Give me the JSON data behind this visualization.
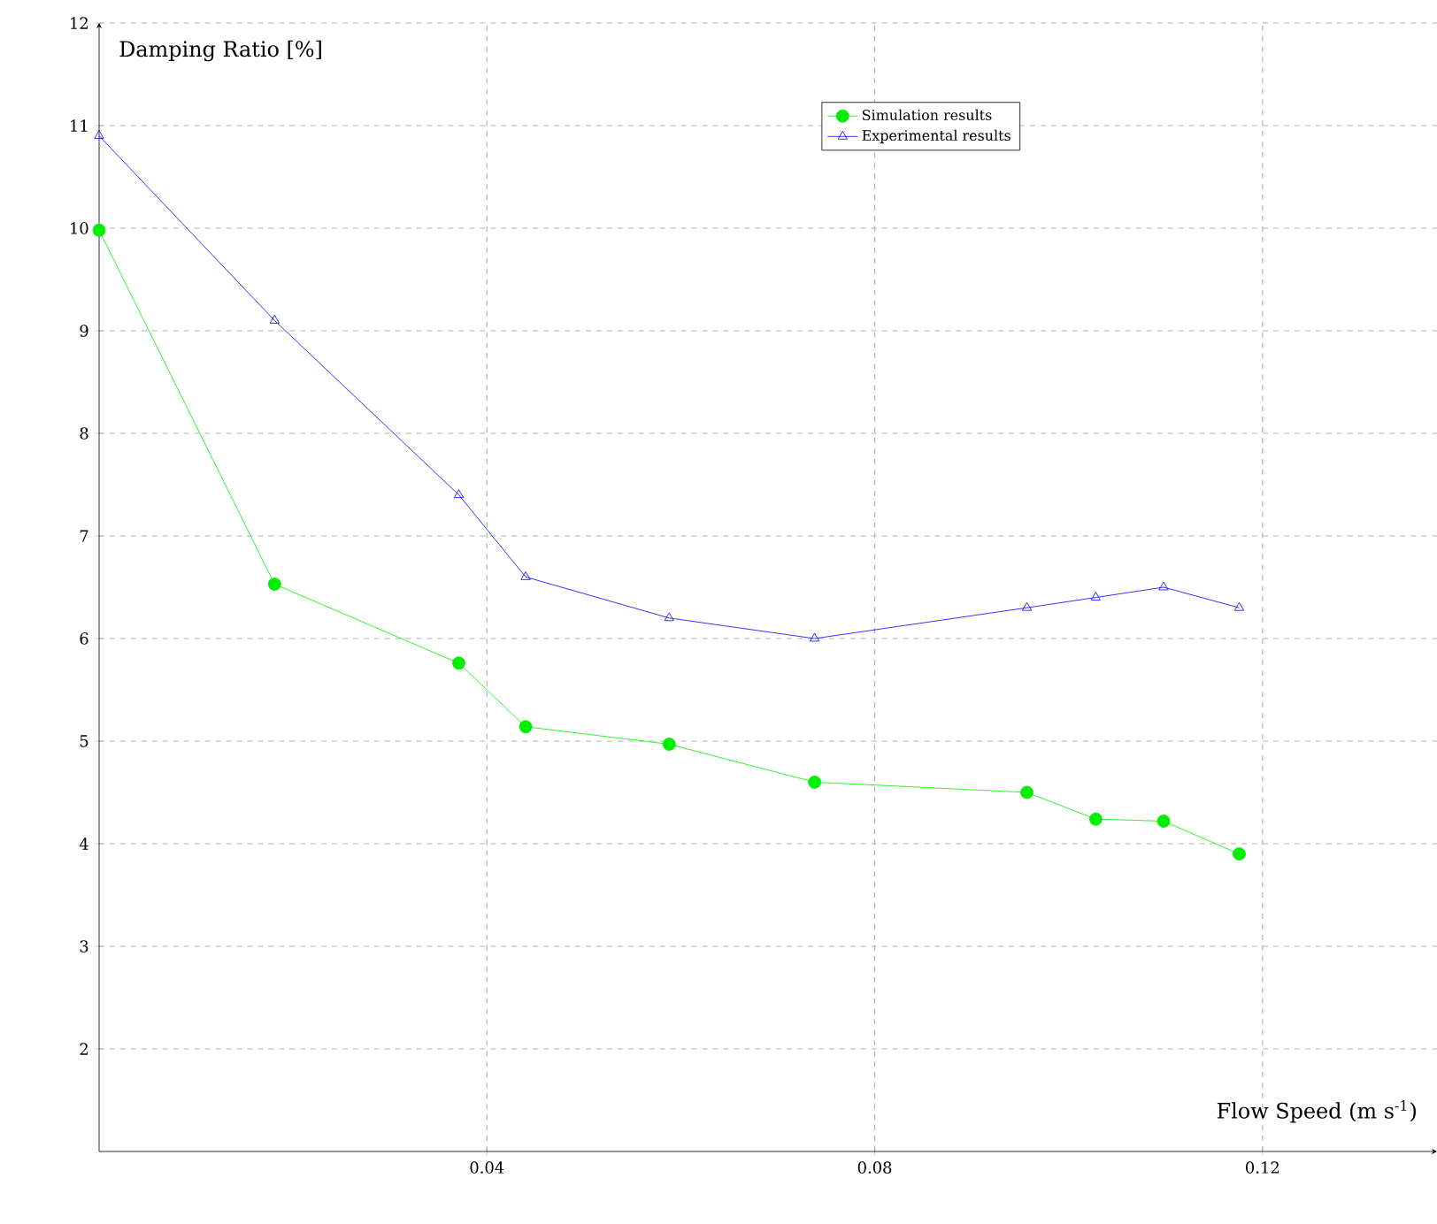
{
  "chart_data": {
    "type": "line",
    "xlabel": "Flow Speed (m s$^{-1}$)",
    "ylabel": "Damping Ratio [%]",
    "xlim": [
      0,
      0.138
    ],
    "ylim": [
      1,
      12
    ],
    "xticks": [
      0.04,
      0.08,
      0.12
    ],
    "yticks": [
      2,
      3,
      4,
      5,
      6,
      7,
      8,
      9,
      10,
      11,
      12
    ],
    "grid": true,
    "legend": "top right",
    "line_style": "solid",
    "series": [
      {
        "name": "Simulation results",
        "color": "#00ee00",
        "marker": "circle",
        "x": [
          0,
          0.0181,
          0.0371,
          0.044,
          0.0588,
          0.0738,
          0.0957,
          0.1028,
          0.1098,
          0.1176
        ],
        "values": [
          9.98,
          6.53,
          5.76,
          5.14,
          4.97,
          4.6,
          4.5,
          4.24,
          4.22,
          3.9
        ]
      },
      {
        "name": "Experimental results",
        "color": "#0000ff",
        "marker": "triangle",
        "x": [
          0,
          0.0181,
          0.0371,
          0.044,
          0.0588,
          0.0738,
          0.0957,
          0.1028,
          0.1098,
          0.1176
        ],
        "values": [
          10.9,
          9.1,
          7.4,
          6.6,
          6.2,
          6.0,
          6.3,
          6.4,
          6.5,
          6.3
        ]
      }
    ]
  }
}
